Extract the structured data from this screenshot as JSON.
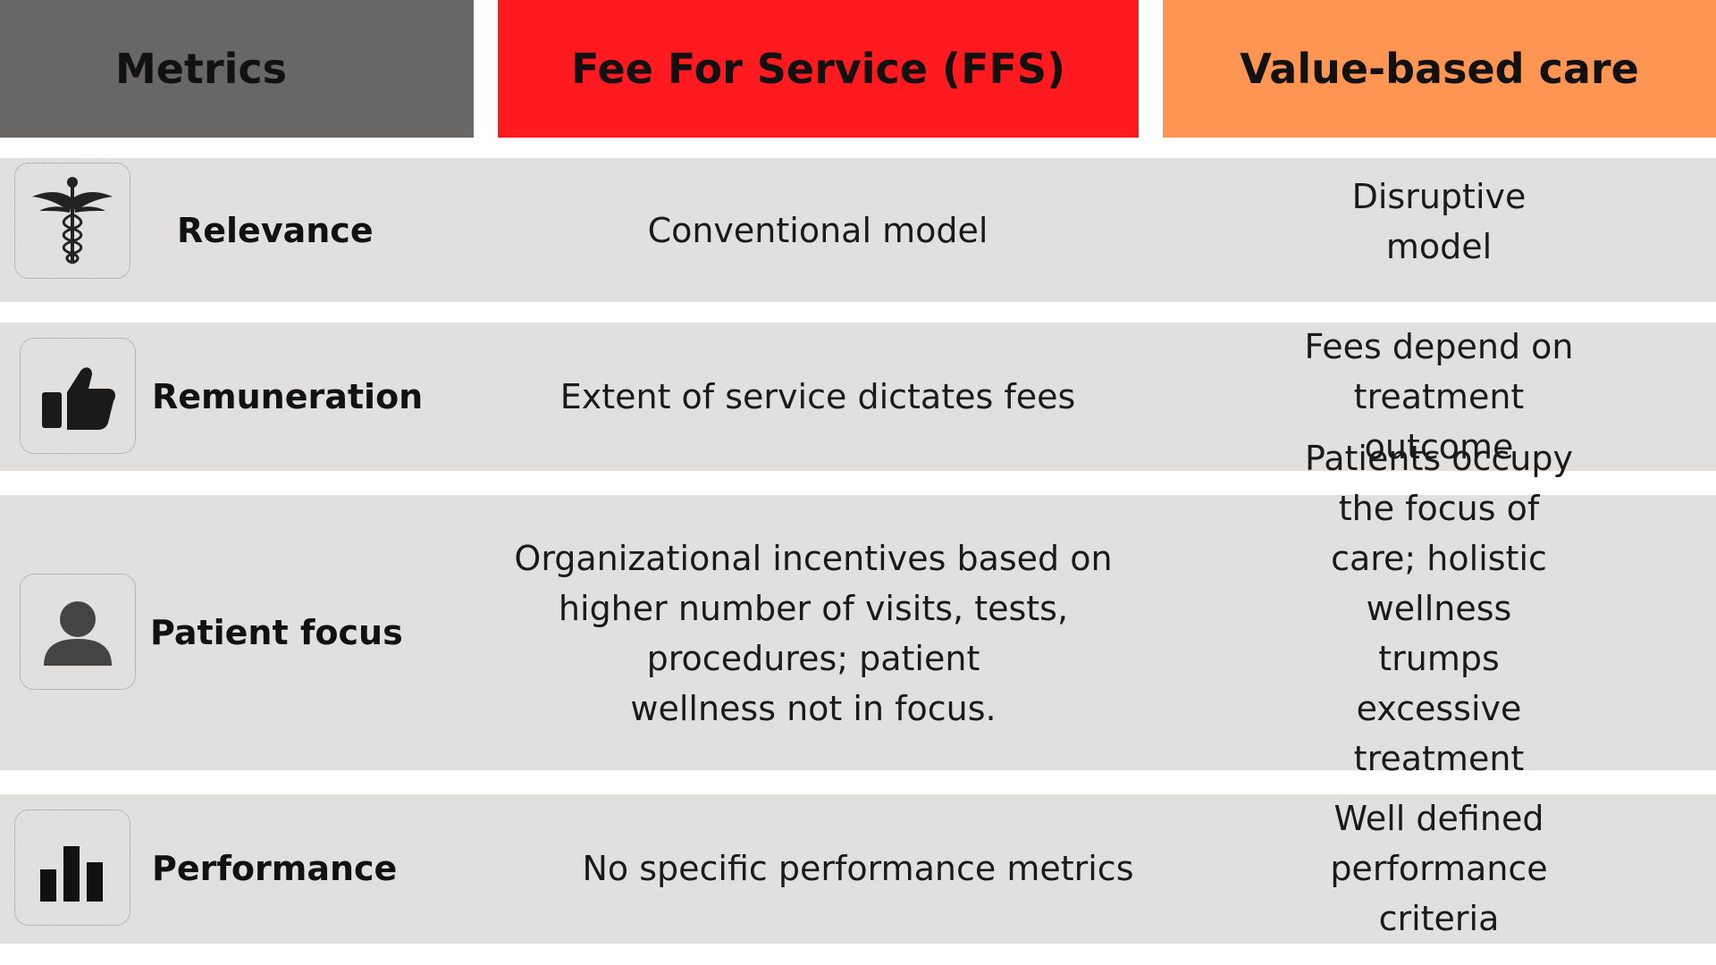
{
  "header": {
    "metrics": "Metrics",
    "ffs": "Fee For Service (FFS)",
    "vbc": "Value-based care"
  },
  "colors": {
    "metrics_header": "#686766",
    "ffs_header": "#fe1a1e",
    "vbc_header": "#fe9552",
    "row_bg": "#e1e0df"
  },
  "rows": [
    {
      "icon": "caduceus-icon",
      "metric": "Relevance",
      "ffs": "Conventional model",
      "vbc": "Disruptive model"
    },
    {
      "icon": "thumbs-up-icon",
      "metric": "Remuneration",
      "ffs": "Extent of service dictates fees",
      "vbc": "Fees depend on treatment\noutcome"
    },
    {
      "icon": "person-icon",
      "metric": "Patient focus",
      "ffs": "Organizational incentives based on\nhigher number of visits, tests,\nprocedures; patient\nwellness not in focus.",
      "vbc": "Patients occupy the focus of\ncare; holistic wellness\ntrumps  excessive treatment\nand profit."
    },
    {
      "icon": "bar-chart-icon",
      "metric": "Performance",
      "ffs": "No specific performance metrics",
      "vbc": "Well defined performance\ncriteria"
    }
  ]
}
